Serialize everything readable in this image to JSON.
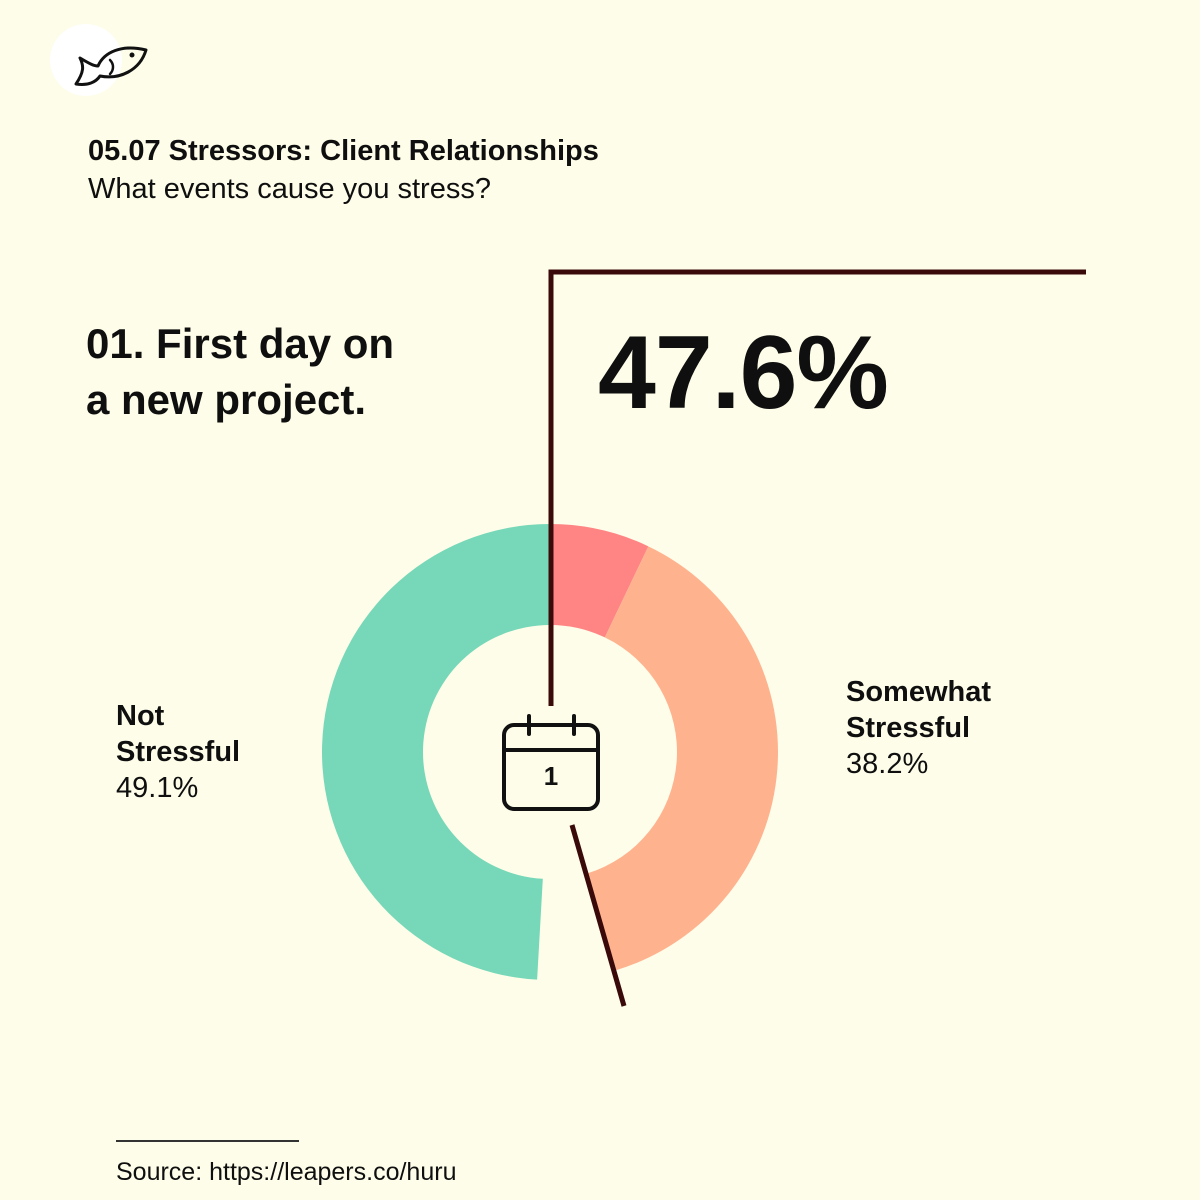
{
  "logo": {
    "icon": "fish-icon"
  },
  "header": {
    "title": "05.07 Stressors: Client Relationships",
    "subtitle": "What events cause you stress?"
  },
  "question": {
    "line1": "01. First day on",
    "line2": "a new project."
  },
  "highlight_value": "47.6%",
  "center_icon": {
    "name": "calendar-icon",
    "text": "1"
  },
  "source": "Source: https://leapers.co/huru",
  "chart_data": {
    "type": "pie",
    "variant": "donut",
    "slices": [
      {
        "key": "very",
        "value": 7.1,
        "color": "#ff8585"
      },
      {
        "key": "somewhat",
        "label_line1": "Somewhat",
        "label_line2": "Stressful",
        "value_text": "38.2%",
        "value": 38.2,
        "color": "#ffb28e"
      },
      {
        "key": "gap",
        "value": 5.6,
        "color": "none"
      },
      {
        "key": "not",
        "label_line1": "Not",
        "label_line2": "Stressful",
        "value_text": "49.1%",
        "value": 49.1,
        "color": "#76d8b8"
      }
    ]
  },
  "colors": {
    "background": "#fefde9",
    "leader_line": "#3a0a0a"
  }
}
